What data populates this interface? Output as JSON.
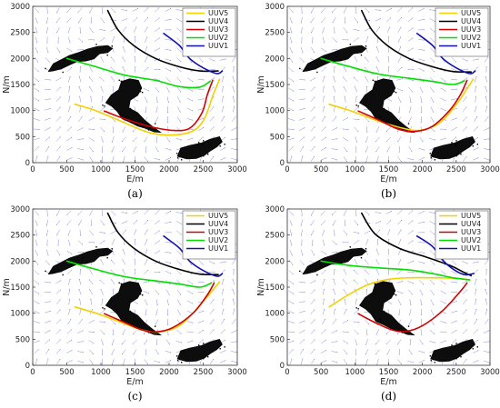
{
  "chart_data": [
    {
      "type": "line",
      "panel_label": "(a)",
      "xlabel": "E/m",
      "ylabel": "N/m",
      "xlim": [
        0,
        3000
      ],
      "ylim": [
        0,
        3000
      ],
      "xticks": [
        0,
        500,
        1000,
        1500,
        2000,
        2500,
        3000
      ],
      "yticks": [
        0,
        500,
        1000,
        1500,
        2000,
        2500,
        3000
      ],
      "legend_position": "top-right",
      "grid": false,
      "series": [
        {
          "name": "UUV5",
          "color": "#f5d000",
          "points": [
            [
              620,
              1120
            ],
            [
              900,
              1010
            ],
            [
              1250,
              820
            ],
            [
              1700,
              580
            ],
            [
              2050,
              530
            ],
            [
              2350,
              610
            ],
            [
              2520,
              850
            ],
            [
              2640,
              1280
            ],
            [
              2740,
              1600
            ]
          ]
        },
        {
          "name": "UUV4",
          "color": "#000000",
          "points": [
            [
              1100,
              2920
            ],
            [
              1250,
              2550
            ],
            [
              1480,
              2250
            ],
            [
              1800,
              2000
            ],
            [
              2150,
              1840
            ],
            [
              2450,
              1760
            ],
            [
              2720,
              1760
            ]
          ]
        },
        {
          "name": "UUV3",
          "color": "#d40000",
          "points": [
            [
              1050,
              990
            ],
            [
              1350,
              840
            ],
            [
              1700,
              700
            ],
            [
              2050,
              620
            ],
            [
              2300,
              660
            ],
            [
              2480,
              950
            ],
            [
              2560,
              1300
            ],
            [
              2640,
              1580
            ]
          ]
        },
        {
          "name": "UUV2",
          "color": "#00dd00",
          "points": [
            [
              500,
              2000
            ],
            [
              900,
              1850
            ],
            [
              1350,
              1680
            ],
            [
              1800,
              1580
            ],
            [
              2150,
              1460
            ],
            [
              2450,
              1450
            ],
            [
              2600,
              1560
            ]
          ]
        },
        {
          "name": "UUV1",
          "color": "#1010b0",
          "points": [
            [
              1920,
              2480
            ],
            [
              2150,
              2250
            ],
            [
              2300,
              2000
            ],
            [
              2500,
              1820
            ],
            [
              2700,
              1710
            ],
            [
              2780,
              1760
            ]
          ]
        }
      ]
    },
    {
      "type": "line",
      "panel_label": "(b)",
      "xlabel": "E/m",
      "ylabel": "N/m",
      "xlim": [
        0,
        3000
      ],
      "ylim": [
        0,
        3000
      ],
      "xticks": [
        0,
        500,
        1000,
        1500,
        2000,
        2500,
        3000
      ],
      "yticks": [
        0,
        500,
        1000,
        1500,
        2000,
        2500,
        3000
      ],
      "legend_position": "top-right",
      "grid": false,
      "series": [
        {
          "name": "UUV5",
          "color": "#f5d000",
          "points": [
            [
              620,
              1120
            ],
            [
              950,
              990
            ],
            [
              1300,
              820
            ],
            [
              1650,
              680
            ],
            [
              1950,
              620
            ],
            [
              2250,
              760
            ],
            [
              2520,
              1150
            ],
            [
              2750,
              1600
            ]
          ]
        },
        {
          "name": "UUV4",
          "color": "#000000",
          "points": [
            [
              1100,
              2920
            ],
            [
              1250,
              2550
            ],
            [
              1480,
              2250
            ],
            [
              1800,
              2000
            ],
            [
              2150,
              1840
            ],
            [
              2450,
              1750
            ],
            [
              2720,
              1740
            ]
          ]
        },
        {
          "name": "UUV3",
          "color": "#d40000",
          "points": [
            [
              1050,
              990
            ],
            [
              1350,
              820
            ],
            [
              1650,
              640
            ],
            [
              1900,
              600
            ],
            [
              2150,
              700
            ],
            [
              2400,
              1000
            ],
            [
              2560,
              1300
            ],
            [
              2660,
              1580
            ]
          ]
        },
        {
          "name": "UUV2",
          "color": "#00dd00",
          "points": [
            [
              500,
              2000
            ],
            [
              900,
              1850
            ],
            [
              1350,
              1700
            ],
            [
              1800,
              1620
            ],
            [
              2150,
              1560
            ],
            [
              2450,
              1500
            ],
            [
              2620,
              1570
            ]
          ]
        },
        {
          "name": "UUV1",
          "color": "#1010b0",
          "points": [
            [
              1920,
              2480
            ],
            [
              2150,
              2250
            ],
            [
              2300,
              2000
            ],
            [
              2500,
              1820
            ],
            [
              2700,
              1710
            ],
            [
              2780,
              1760
            ]
          ]
        }
      ]
    },
    {
      "type": "line",
      "panel_label": "(c)",
      "xlabel": "E/m",
      "ylabel": "N/m",
      "xlim": [
        0,
        3000
      ],
      "ylim": [
        0,
        3000
      ],
      "xticks": [
        0,
        500,
        1000,
        1500,
        2000,
        2500,
        3000
      ],
      "yticks": [
        0,
        500,
        1000,
        1500,
        2000,
        2500,
        3000
      ],
      "legend_position": "top-right",
      "grid": false,
      "series": [
        {
          "name": "UUV5",
          "color": "#f5d000",
          "points": [
            [
              620,
              1120
            ],
            [
              950,
              990
            ],
            [
              1300,
              820
            ],
            [
              1600,
              680
            ],
            [
              1850,
              640
            ],
            [
              2150,
              760
            ],
            [
              2450,
              1150
            ],
            [
              2740,
              1600
            ]
          ]
        },
        {
          "name": "UUV4",
          "color": "#000000",
          "points": [
            [
              1100,
              2920
            ],
            [
              1250,
              2550
            ],
            [
              1480,
              2250
            ],
            [
              1800,
              2000
            ],
            [
              2150,
              1840
            ],
            [
              2450,
              1750
            ],
            [
              2720,
              1740
            ]
          ]
        },
        {
          "name": "UUV3",
          "color": "#d40000",
          "points": [
            [
              1050,
              990
            ],
            [
              1350,
              820
            ],
            [
              1600,
              680
            ],
            [
              1800,
              640
            ],
            [
              2050,
              720
            ],
            [
              2350,
              1000
            ],
            [
              2560,
              1350
            ],
            [
              2660,
              1580
            ]
          ]
        },
        {
          "name": "UUV2",
          "color": "#00dd00",
          "points": [
            [
              500,
              2000
            ],
            [
              900,
              1850
            ],
            [
              1350,
              1700
            ],
            [
              1800,
              1620
            ],
            [
              2150,
              1560
            ],
            [
              2450,
              1500
            ],
            [
              2620,
              1580
            ]
          ]
        },
        {
          "name": "UUV1",
          "color": "#1010b0",
          "points": [
            [
              1920,
              2480
            ],
            [
              2150,
              2250
            ],
            [
              2300,
              2000
            ],
            [
              2500,
              1820
            ],
            [
              2700,
              1710
            ],
            [
              2780,
              1760
            ]
          ]
        }
      ]
    },
    {
      "type": "line",
      "panel_label": "(d)",
      "xlabel": "E/m",
      "ylabel": "N/m",
      "xlim": [
        0,
        3000
      ],
      "ylim": [
        0,
        3000
      ],
      "xticks": [
        0,
        500,
        1000,
        1500,
        2000,
        2500,
        3000
      ],
      "yticks": [
        0,
        500,
        1000,
        1500,
        2000,
        2500,
        3000
      ],
      "legend_position": "top-right",
      "grid": false,
      "series": [
        {
          "name": "UUV5",
          "color": "#f5d000",
          "points": [
            [
              620,
              1120
            ],
            [
              900,
              1350
            ],
            [
              1200,
              1550
            ],
            [
              1500,
              1650
            ],
            [
              1800,
              1680
            ],
            [
              2150,
              1680
            ],
            [
              2500,
              1670
            ],
            [
              2700,
              1640
            ]
          ]
        },
        {
          "name": "UUV4",
          "color": "#000000",
          "points": [
            [
              1100,
              2920
            ],
            [
              1300,
              2520
            ],
            [
              1650,
              2250
            ],
            [
              2050,
              2080
            ],
            [
              2400,
              1920
            ],
            [
              2620,
              1780
            ],
            [
              2720,
              1720
            ]
          ]
        },
        {
          "name": "UUV3",
          "color": "#d40000",
          "points": [
            [
              1050,
              990
            ],
            [
              1300,
              820
            ],
            [
              1550,
              680
            ],
            [
              1750,
              650
            ],
            [
              2000,
              760
            ],
            [
              2300,
              1050
            ],
            [
              2550,
              1400
            ],
            [
              2660,
              1580
            ]
          ]
        },
        {
          "name": "UUV2",
          "color": "#00dd00",
          "points": [
            [
              500,
              2000
            ],
            [
              900,
              1920
            ],
            [
              1350,
              1870
            ],
            [
              1800,
              1830
            ],
            [
              2150,
              1760
            ],
            [
              2450,
              1680
            ],
            [
              2700,
              1640
            ]
          ]
        },
        {
          "name": "UUV1",
          "color": "#1010b0",
          "points": [
            [
              1920,
              2480
            ],
            [
              2150,
              2280
            ],
            [
              2300,
              2020
            ],
            [
              2450,
              1850
            ],
            [
              2620,
              1740
            ],
            [
              2760,
              1760
            ]
          ]
        }
      ]
    }
  ]
}
